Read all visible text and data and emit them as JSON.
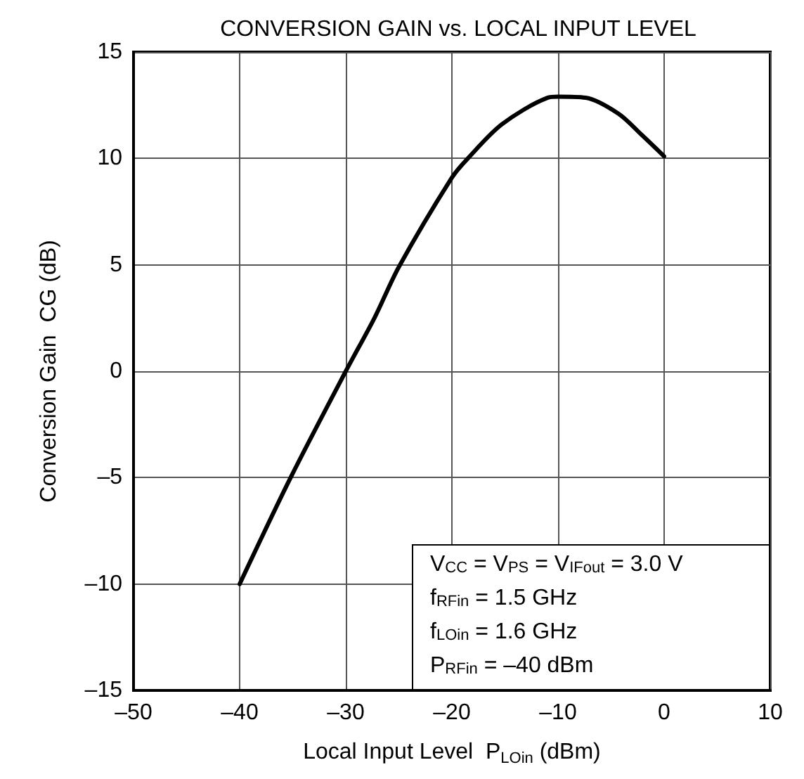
{
  "chart_data": {
    "type": "line",
    "title": "CONVERSION GAIN vs. LOCAL INPUT LEVEL",
    "xlabel": "Local Input Level  P$_{LOin}$ (dBm)",
    "ylabel": "Conversion Gain  CG (dB)",
    "x": [
      -40,
      -35.2,
      -30,
      -27.3,
      -25,
      -20,
      -18.5,
      -15.3,
      -11,
      -10,
      -7.4,
      -4.3,
      -2.1,
      0
    ],
    "series": [
      {
        "color": "#000000",
        "values": [
          -10,
          -5,
          0,
          2.5,
          4.9,
          9.1,
          10,
          11.6,
          12.85,
          12.9,
          12.85,
          12.1,
          11.1,
          10.1
        ]
      }
    ],
    "xlim": [
      -50,
      10
    ],
    "xticks": [
      {
        "value": -50,
        "label": "–50"
      },
      {
        "value": -40,
        "label": "–40"
      },
      {
        "value": -30,
        "label": "–30"
      },
      {
        "value": -20,
        "label": "–20"
      },
      {
        "value": -10,
        "label": "–10"
      },
      0,
      10
    ],
    "ylim": [
      -15,
      15
    ],
    "yticks": [
      {
        "value": -15,
        "label": "–15"
      },
      {
        "value": -10,
        "label": "–10"
      },
      {
        "value": -5,
        "label": "–5"
      },
      0,
      5,
      10,
      15
    ],
    "grid": true,
    "marker": "none",
    "line_style": "solid",
    "annotations": [
      "V$_{CC}$ = V$_{PS}$ = V$_{IFout}$ = 3.0 V",
      "f$_{RFin}$ = 1.5 GHz",
      "f$_{LOin}$ = 1.6 GHz",
      "P$_{RFin}$ = –40 dBm"
    ]
  }
}
